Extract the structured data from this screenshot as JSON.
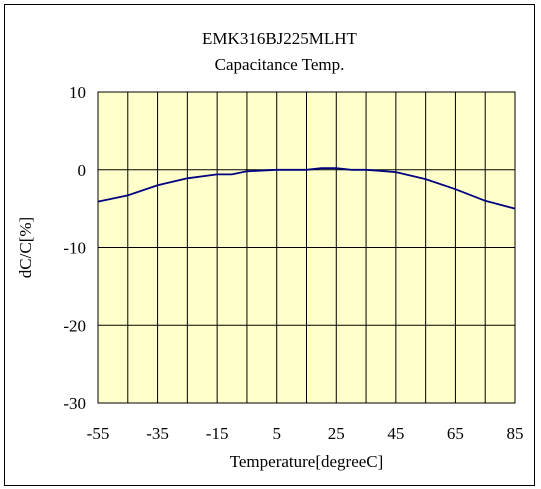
{
  "chart_data": {
    "type": "line",
    "title": "EMK316BJ225MLHT",
    "subtitle": "Capacitance Temp.",
    "xlabel": "Temperature[degreeC]",
    "ylabel": "dC/C[%]",
    "xlim": [
      -55,
      85
    ],
    "ylim": [
      -30,
      10
    ],
    "xticks": [
      -55,
      -35,
      -15,
      5,
      25,
      45,
      65,
      85
    ],
    "xtick_labels": [
      "-55",
      "-35",
      "-15",
      "5",
      "25",
      "45",
      "65",
      "85"
    ],
    "yticks": [
      10,
      0,
      -10,
      -20,
      -30
    ],
    "ytick_labels": [
      "10",
      "0",
      "-10",
      "-20",
      "-30"
    ],
    "grid": true,
    "legend": "none",
    "series": [
      {
        "color": "#000080",
        "x": [
          -55,
          -45,
          -35,
          -25,
          -15,
          -10,
          -5,
          5,
          15,
          20,
          25,
          30,
          35,
          45,
          55,
          65,
          75,
          85
        ],
        "y": [
          -4.1,
          -3.3,
          -2.0,
          -1.1,
          -0.6,
          -0.6,
          -0.2,
          0.0,
          0.0,
          0.2,
          0.2,
          0.0,
          0.0,
          -0.3,
          -1.2,
          -2.5,
          -4.0,
          -5.0
        ]
      }
    ],
    "colors": {
      "plot_background": "#ffffcc",
      "grid": "#000000",
      "line": "#000080"
    }
  }
}
